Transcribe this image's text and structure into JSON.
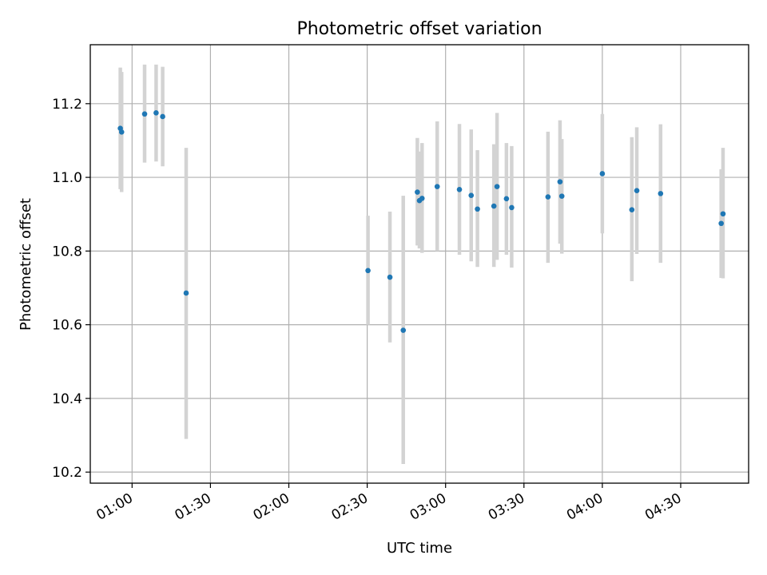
{
  "chart_data": {
    "type": "scatter",
    "title": "Photometric offset variation",
    "xlabel": "UTC time",
    "ylabel": "Photometric offset",
    "xlim_minutes": [
      44,
      296
    ],
    "ylim": [
      10.17,
      11.36
    ],
    "grid": true,
    "x_ticks": [
      {
        "minutes": 60,
        "label": "01:00"
      },
      {
        "minutes": 90,
        "label": "01:30"
      },
      {
        "minutes": 120,
        "label": "02:00"
      },
      {
        "minutes": 150,
        "label": "02:30"
      },
      {
        "minutes": 180,
        "label": "03:00"
      },
      {
        "minutes": 210,
        "label": "03:30"
      },
      {
        "minutes": 240,
        "label": "04:00"
      },
      {
        "minutes": 270,
        "label": "04:30"
      }
    ],
    "y_ticks": [
      {
        "value": 10.2,
        "label": "10.2"
      },
      {
        "value": 10.4,
        "label": "10.4"
      },
      {
        "value": 10.6,
        "label": "10.6"
      },
      {
        "value": 10.8,
        "label": "10.8"
      },
      {
        "value": 11.0,
        "label": "11.0"
      },
      {
        "value": 11.2,
        "label": "11.2"
      }
    ],
    "point_color": "#1f77b4",
    "errorbar_color": "#d3d3d3",
    "points": [
      {
        "t": 55.5,
        "y": 11.133,
        "lo": 10.968,
        "hi": 11.298
      },
      {
        "t": 56.0,
        "y": 11.123,
        "lo": 10.96,
        "hi": 11.286
      },
      {
        "t": 64.8,
        "y": 11.172,
        "lo": 11.04,
        "hi": 11.306
      },
      {
        "t": 69.2,
        "y": 11.175,
        "lo": 11.043,
        "hi": 11.306
      },
      {
        "t": 71.7,
        "y": 11.165,
        "lo": 11.03,
        "hi": 11.3
      },
      {
        "t": 80.7,
        "y": 10.686,
        "lo": 10.29,
        "hi": 11.08
      },
      {
        "t": 150.3,
        "y": 10.747,
        "lo": 10.6,
        "hi": 10.896
      },
      {
        "t": 158.7,
        "y": 10.729,
        "lo": 10.552,
        "hi": 10.907
      },
      {
        "t": 163.8,
        "y": 10.585,
        "lo": 10.222,
        "hi": 10.95
      },
      {
        "t": 169.2,
        "y": 10.96,
        "lo": 10.815,
        "hi": 11.107
      },
      {
        "t": 170.0,
        "y": 10.937,
        "lo": 10.807,
        "hi": 11.07
      },
      {
        "t": 171.0,
        "y": 10.943,
        "lo": 10.795,
        "hi": 11.093
      },
      {
        "t": 176.8,
        "y": 10.975,
        "lo": 10.8,
        "hi": 11.152
      },
      {
        "t": 185.3,
        "y": 10.967,
        "lo": 10.79,
        "hi": 11.145
      },
      {
        "t": 189.8,
        "y": 10.951,
        "lo": 10.772,
        "hi": 11.13
      },
      {
        "t": 192.2,
        "y": 10.914,
        "lo": 10.757,
        "hi": 11.074
      },
      {
        "t": 198.5,
        "y": 10.922,
        "lo": 10.757,
        "hi": 11.09
      },
      {
        "t": 199.7,
        "y": 10.975,
        "lo": 10.776,
        "hi": 11.175
      },
      {
        "t": 203.3,
        "y": 10.942,
        "lo": 10.79,
        "hi": 11.093
      },
      {
        "t": 205.3,
        "y": 10.918,
        "lo": 10.755,
        "hi": 11.085
      },
      {
        "t": 219.2,
        "y": 10.947,
        "lo": 10.768,
        "hi": 11.124
      },
      {
        "t": 223.8,
        "y": 10.988,
        "lo": 10.82,
        "hi": 11.155
      },
      {
        "t": 224.5,
        "y": 10.949,
        "lo": 10.793,
        "hi": 11.104
      },
      {
        "t": 240.0,
        "y": 11.01,
        "lo": 10.848,
        "hi": 11.172
      },
      {
        "t": 251.3,
        "y": 10.912,
        "lo": 10.718,
        "hi": 11.109
      },
      {
        "t": 253.2,
        "y": 10.964,
        "lo": 10.792,
        "hi": 11.136
      },
      {
        "t": 262.3,
        "y": 10.956,
        "lo": 10.768,
        "hi": 11.144
      },
      {
        "t": 285.5,
        "y": 10.875,
        "lo": 10.727,
        "hi": 11.022
      },
      {
        "t": 286.2,
        "y": 10.901,
        "lo": 10.726,
        "hi": 11.08
      }
    ]
  }
}
